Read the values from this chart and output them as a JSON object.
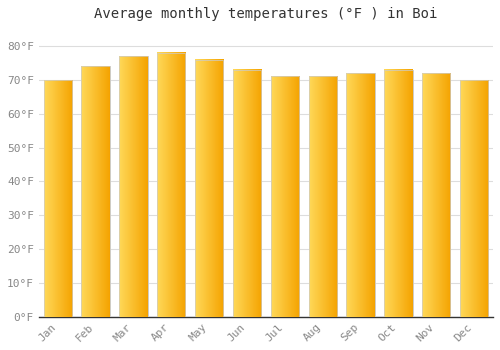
{
  "title": "Average monthly temperatures (°F ) in Boi",
  "months": [
    "Jan",
    "Feb",
    "Mar",
    "Apr",
    "May",
    "Jun",
    "Jul",
    "Aug",
    "Sep",
    "Oct",
    "Nov",
    "Dec"
  ],
  "values": [
    70,
    74,
    77,
    78,
    76,
    73,
    71,
    71,
    72,
    73,
    72,
    70
  ],
  "bar_color_left": "#FFCC44",
  "bar_color_right": "#F5A800",
  "bar_edge_color": "#CCCCCC",
  "background_color": "#FFFFFF",
  "plot_bg_color": "#FFFFFF",
  "yticks": [
    0,
    10,
    20,
    30,
    40,
    50,
    60,
    70,
    80
  ],
  "ylim": [
    0,
    85
  ],
  "grid_color": "#DDDDDD",
  "title_fontsize": 10,
  "tick_fontsize": 8,
  "tick_color": "#888888",
  "font_family": "monospace",
  "figsize": [
    5.0,
    3.5
  ],
  "dpi": 100
}
